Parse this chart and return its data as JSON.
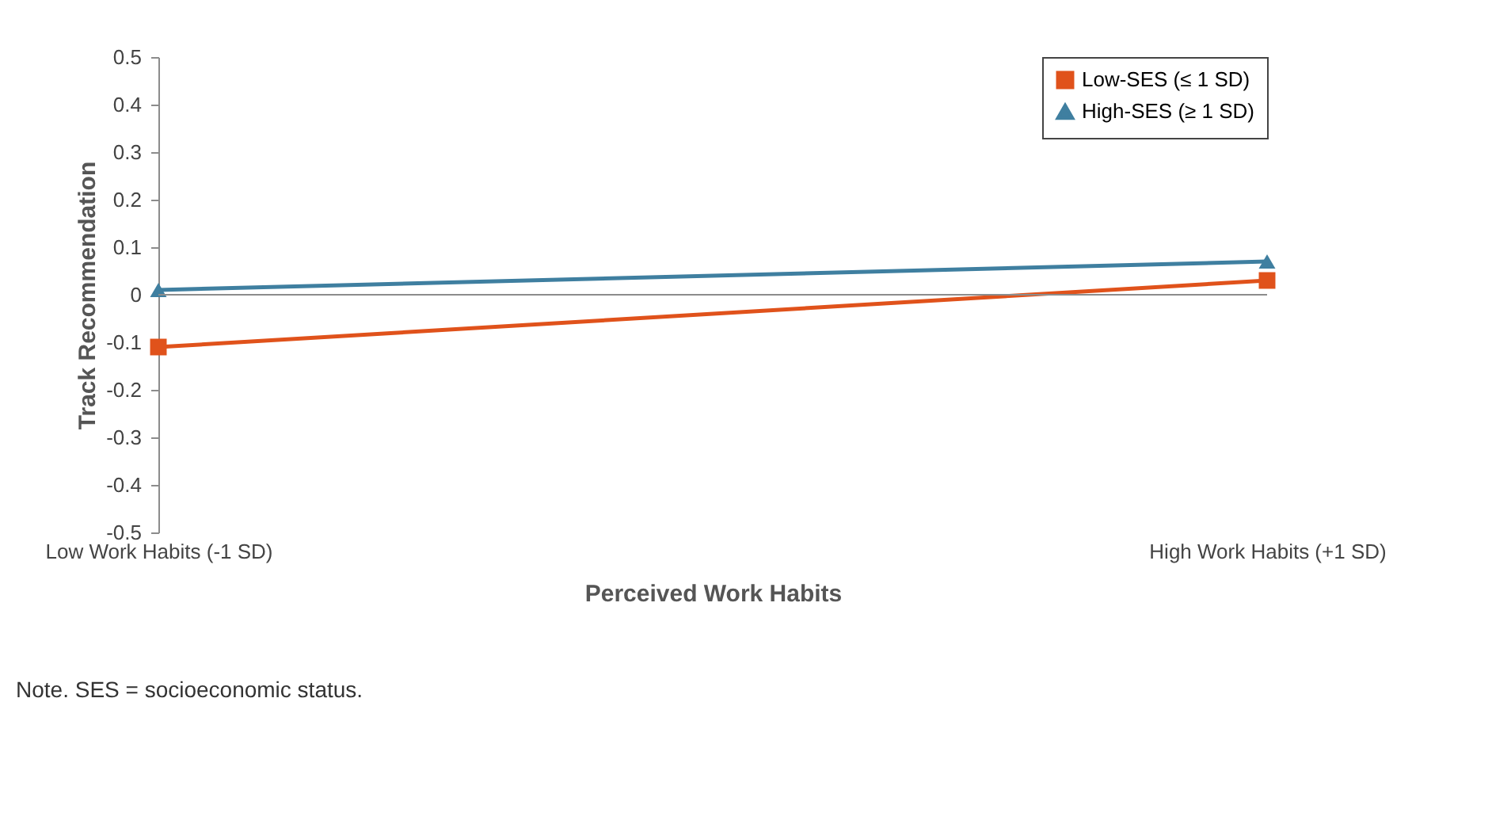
{
  "chart_data": {
    "type": "line",
    "xlabel": "Perceived Work Habits",
    "ylabel": "Track Recommendation",
    "categories": [
      "Low Work Habits  (-1 SD)",
      "High Work Habits (+1 SD)"
    ],
    "series": [
      {
        "name": "Low-SES (≤ 1 SD)",
        "color": "#e0521b",
        "marker": "square",
        "values": [
          -0.11,
          0.03
        ]
      },
      {
        "name": "High-SES (≥ 1 SD)",
        "color": "#3f7fa0",
        "marker": "triangle",
        "values": [
          0.01,
          0.07
        ]
      }
    ],
    "ylim": [
      -0.5,
      0.5
    ],
    "yticks": [
      -0.5,
      -0.4,
      -0.3,
      -0.2,
      -0.1,
      0,
      0.1,
      0.2,
      0.3,
      0.4,
      0.5
    ],
    "ref_lines": [
      {
        "axis": "y",
        "value": 0,
        "color": "#8c8c8c"
      }
    ],
    "grid": false,
    "legend": "top right",
    "line_style": "solid",
    "annotations": [
      "Note. SES = socioeconomic status."
    ]
  }
}
